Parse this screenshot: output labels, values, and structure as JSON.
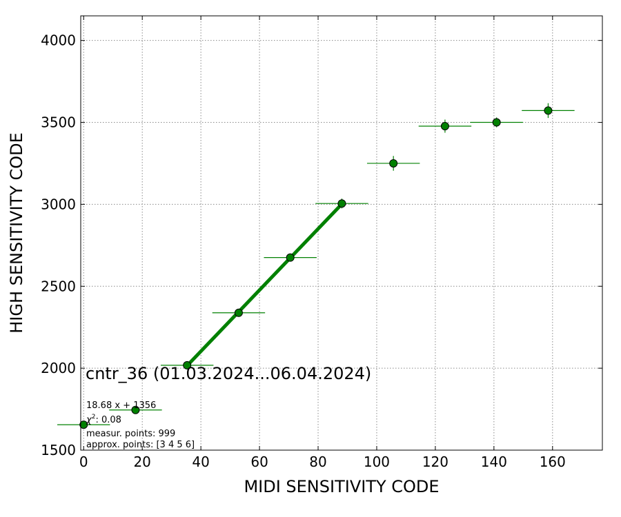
{
  "chart_data": {
    "type": "scatter",
    "xlabel": "MIDI SENSITIVITY CODE",
    "ylabel": "HIGH SENSITIVITY CODE",
    "xlim": [
      -1,
      177
    ],
    "ylim": [
      1500,
      4150
    ],
    "xticks": [
      0,
      20,
      40,
      60,
      80,
      100,
      120,
      140,
      160
    ],
    "yticks": [
      1500,
      2000,
      2500,
      3000,
      3500,
      4000
    ],
    "grid": true,
    "color": "#008000",
    "points": [
      {
        "x": 0,
        "y": 1655,
        "xerr": 9,
        "yerr": 12
      },
      {
        "x": 17.7,
        "y": 1745,
        "xerr": 9,
        "yerr": 12
      },
      {
        "x": 35.3,
        "y": 2018,
        "xerr": 9,
        "yerr": 15
      },
      {
        "x": 52.9,
        "y": 2338,
        "xerr": 9,
        "yerr": 18
      },
      {
        "x": 70.5,
        "y": 2675,
        "xerr": 9,
        "yerr": 22
      },
      {
        "x": 88.1,
        "y": 3005,
        "xerr": 9,
        "yerr": 30
      },
      {
        "x": 105.7,
        "y": 3250,
        "xerr": 9,
        "yerr": 45
      },
      {
        "x": 123.3,
        "y": 3477,
        "xerr": 9,
        "yerr": 40
      },
      {
        "x": 140.9,
        "y": 3500,
        "xerr": 9,
        "yerr": 30
      },
      {
        "x": 158.5,
        "y": 3572,
        "xerr": 9,
        "yerr": 45
      }
    ],
    "fit_line": {
      "x": [
        35.3,
        88.1
      ],
      "slope": 18.68,
      "intercept": 1356
    }
  },
  "annotation": {
    "title": "cntr_36 (01.03.2024...06.04.2024)",
    "equation": "18.68 x + 1356",
    "chi_label": "χ",
    "chi_sup": "2",
    "chi_value": ": 0.08",
    "measured": "measur. points: 999",
    "approx": "approx. points: [3 4 5 6]"
  }
}
